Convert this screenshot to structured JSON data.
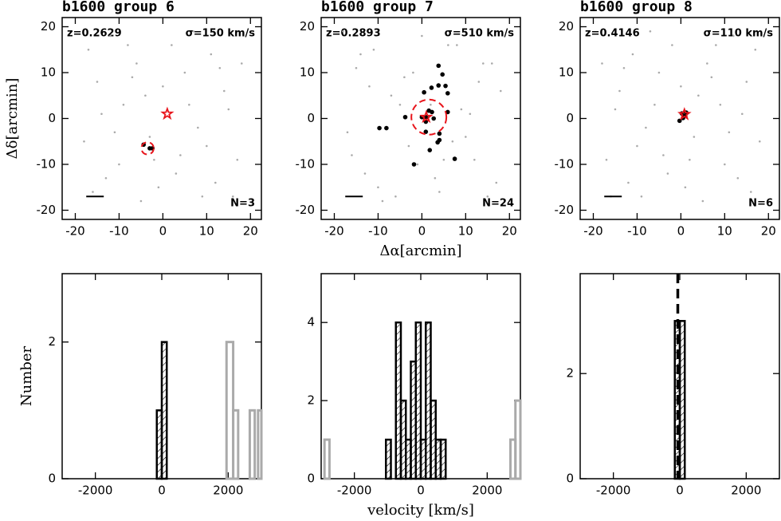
{
  "chart_data": [
    {
      "type": "scatter",
      "title": "b1600 group 6",
      "redshift": "z=0.2629",
      "dispersion": "σ=150 km/s",
      "count": "N=3",
      "ylabel": "Δδ[arcmin]",
      "xlim": [
        -23,
        22.5
      ],
      "ylim": [
        -22,
        22
      ],
      "xticks": [
        -20,
        -10,
        0,
        10,
        20
      ],
      "yticks": [
        -20,
        -10,
        0,
        10,
        20
      ],
      "field": {
        "color": "#aaaaaa",
        "x": [
          -17,
          -15,
          -12,
          -9,
          -6,
          -3,
          2,
          5,
          8,
          11,
          14,
          17,
          -18,
          -13,
          -7,
          -1,
          4,
          9,
          15,
          -16,
          -10,
          -4,
          3,
          7,
          12,
          18,
          -14,
          -8,
          -2,
          6,
          10,
          16,
          -5,
          0,
          13,
          -11
        ],
        "y": [
          15,
          8,
          18,
          3,
          12,
          -4,
          16,
          10,
          -2,
          14,
          6,
          -9,
          -5,
          -13,
          9,
          -15,
          -8,
          -17,
          2,
          -16,
          -10,
          5,
          -12,
          19,
          -14,
          12,
          1,
          16,
          -9,
          3,
          -6,
          -17,
          -18,
          7,
          11,
          -3
        ]
      },
      "members": {
        "color": "#000000",
        "x": [
          -4.4,
          -3,
          -2.4
        ],
        "y": [
          -5.7,
          -6.5,
          -6.5
        ]
      },
      "center": {
        "x": 1,
        "y": 1,
        "color": "#e8141b"
      },
      "circle": {
        "x": -3.5,
        "y": -6.5,
        "radius": 1.4
      },
      "scale_bar": {
        "x": [
          -17.5,
          -13.5
        ],
        "y": -17
      }
    },
    {
      "type": "scatter",
      "title": "b1600 group 7",
      "redshift": "z=0.2893",
      "dispersion": "σ=510 km/s",
      "count": "N=24",
      "xlabel": "Δα[arcmin]",
      "xlim": [
        -23,
        22.5
      ],
      "ylim": [
        -22,
        22
      ],
      "xticks": [
        -20,
        -10,
        0,
        10,
        20
      ],
      "yticks": [
        -20,
        -10,
        0,
        10,
        20
      ],
      "field": {
        "color": "#aaaaaa",
        "x": [
          -17,
          -15,
          -12,
          -9,
          -6,
          -3,
          2,
          5,
          8,
          11,
          14,
          17,
          -18,
          -13,
          -7,
          -1,
          4,
          9,
          15,
          -16,
          -10,
          -4,
          3,
          7,
          12,
          18,
          -14,
          -8,
          -2,
          6,
          10,
          16,
          -5,
          0,
          13,
          -11
        ],
        "y": [
          -3,
          11,
          7,
          -18,
          -17,
          -6,
          3,
          -9,
          16,
          1,
          12,
          -14,
          19,
          -12,
          5,
          -10,
          -16,
          2,
          -17,
          -8,
          -15,
          9,
          -13,
          -5,
          -9,
          6,
          14,
          -2,
          10,
          16,
          -4,
          12,
          3,
          18,
          8,
          15
        ]
      },
      "members": {
        "color": "#000000",
        "x": [
          3.8,
          4.7,
          2.2,
          3.8,
          5.4,
          0.5,
          5.9,
          -3.8,
          -9.7,
          -8.1,
          1,
          2.7,
          0.9,
          0.9,
          4,
          3.6,
          4,
          1.8,
          -1.8,
          7.5,
          5.9,
          2.3,
          0,
          1.6
        ],
        "y": [
          11.5,
          9.6,
          6.7,
          7.2,
          7.1,
          5.7,
          5.5,
          0.3,
          -2.1,
          -2.1,
          0.3,
          0,
          -0.7,
          -2.9,
          -3.3,
          -5.2,
          -4.7,
          -6.9,
          -10,
          -8.8,
          1.4,
          1.4,
          0.3,
          1.7
        ]
      },
      "center": {
        "x": 1,
        "y": 0.3,
        "color": "#e8141b"
      },
      "circle": {
        "x": 1.6,
        "y": 0.3,
        "radius": 4
      },
      "scale_bar": {
        "x": [
          -17.5,
          -13.5
        ],
        "y": -17
      }
    },
    {
      "type": "scatter",
      "title": "b1600 group 8",
      "redshift": "z=0.4146",
      "dispersion": "σ=110 km/s",
      "count": "N=6",
      "xlim": [
        -23,
        22.5
      ],
      "ylim": [
        -22,
        22
      ],
      "xticks": [
        -20,
        -10,
        0,
        10,
        20
      ],
      "yticks": [
        -20,
        -10,
        0,
        10,
        20
      ],
      "field": {
        "color": "#aaaaaa",
        "x": [
          17,
          15,
          12,
          9,
          6,
          3,
          -2,
          -5,
          -8,
          -11,
          -14,
          -17,
          18,
          13,
          7,
          1,
          -4,
          -9,
          -15,
          16,
          10,
          4,
          -3,
          -7,
          -12,
          -18,
          14,
          8,
          2,
          -6,
          -10,
          -16,
          5,
          0,
          -13,
          11
        ],
        "y": [
          15,
          8,
          18,
          3,
          12,
          -4,
          16,
          10,
          -2,
          14,
          6,
          -9,
          -5,
          -13,
          9,
          -15,
          -8,
          -17,
          2,
          -16,
          -10,
          5,
          -12,
          19,
          -14,
          12,
          1,
          16,
          -9,
          3,
          -6,
          -17,
          -18,
          7,
          11,
          -3
        ]
      },
      "members": {
        "color": "#000000",
        "x": [
          -0.3,
          0.6,
          1.2,
          0.2,
          1,
          0.5
        ],
        "y": [
          -0.5,
          0.4,
          1.3,
          1.1,
          0.6,
          0.1
        ]
      },
      "center": {
        "x": 0.8,
        "y": 0.9,
        "color": "#e8141b"
      },
      "scale_bar": {
        "x": [
          -17.5,
          -13.5
        ],
        "y": -17
      }
    },
    {
      "type": "histogram",
      "ylabel": "Number",
      "xlim": [
        -3000,
        3000
      ],
      "ylim": [
        0,
        3
      ],
      "xticks": [
        -2000,
        0,
        2000
      ],
      "yticks": [
        0,
        2
      ],
      "bins": [
        -150,
        0,
        150
      ],
      "counts": [
        1,
        2
      ],
      "color": "#000000",
      "others": {
        "color": "#aaaaaa",
        "groups": [
          {
            "bins": [
              1950,
              2150,
              2300
            ],
            "counts": [
              2,
              1
            ]
          },
          {
            "bins": [
              2650,
              2800,
              2900,
              3000
            ],
            "counts": [
              1,
              0,
              1
            ]
          }
        ]
      }
    },
    {
      "type": "histogram",
      "xlabel": "velocity [km/s]",
      "xlim": [
        -3000,
        3000
      ],
      "ylim": [
        0,
        5.25
      ],
      "xticks": [
        -2000,
        0,
        2000
      ],
      "yticks": [
        0,
        2,
        4
      ],
      "bins": [
        -1050,
        -900,
        -750,
        -600,
        -450,
        -300,
        -150,
        0,
        150,
        300,
        450,
        600,
        750,
        900
      ],
      "counts": [
        1,
        0,
        4,
        2,
        1,
        3,
        4,
        1,
        4,
        2,
        1,
        1,
        0
      ],
      "color": "#000000",
      "others": {
        "color": "#aaaaaa",
        "groups": [
          {
            "bins": [
              -2900,
              -2750
            ],
            "counts": [
              1
            ]
          },
          {
            "bins": [
              2700,
              2850,
              3000
            ],
            "counts": [
              1,
              2
            ]
          }
        ]
      }
    },
    {
      "type": "histogram",
      "xlim": [
        -3000,
        3000
      ],
      "ylim": [
        0,
        3.9
      ],
      "xticks": [
        -2000,
        0,
        2000
      ],
      "yticks": [
        0,
        2
      ],
      "bins": [
        -150,
        0,
        150
      ],
      "counts": [
        3,
        3
      ],
      "color": "#000000",
      "vline": -60
    }
  ]
}
